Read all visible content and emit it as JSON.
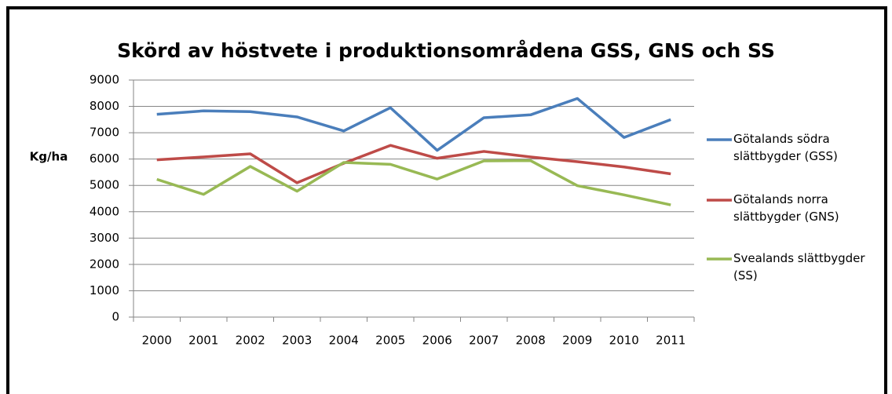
{
  "chart_data": {
    "type": "line",
    "title": "Skörd av höstvete i produktionsområdena GSS, GNS och SS",
    "y_label": "Kg/ha",
    "categories": [
      "2000",
      "2001",
      "2002",
      "2003",
      "2004",
      "2005",
      "2006",
      "2007",
      "2008",
      "2009",
      "2010",
      "2011"
    ],
    "series": [
      {
        "name": "Götalands södra slättbygder (GSS)",
        "color": "#4a7ebb",
        "values": [
          7700,
          7830,
          7800,
          7600,
          7070,
          7950,
          6330,
          7570,
          7680,
          8300,
          6820,
          7500
        ]
      },
      {
        "name": "Götalands norra slättbygder (GNS)",
        "color": "#be4b48",
        "values": [
          5970,
          6080,
          6200,
          5100,
          5840,
          6520,
          6030,
          6290,
          6080,
          5900,
          5700,
          5440
        ]
      },
      {
        "name": "Svealands slättbygder (SS)",
        "color": "#98b954",
        "values": [
          5230,
          4660,
          5720,
          4780,
          5870,
          5800,
          5240,
          5930,
          5940,
          4990,
          4640,
          4260
        ]
      }
    ],
    "ylim": [
      0,
      9000
    ],
    "yticks": [
      0,
      1000,
      2000,
      3000,
      4000,
      5000,
      6000,
      7000,
      8000,
      9000
    ],
    "grid": true,
    "legend": "right"
  }
}
